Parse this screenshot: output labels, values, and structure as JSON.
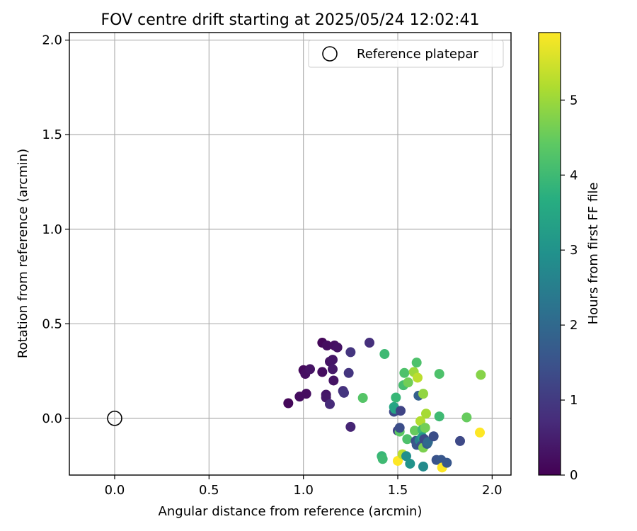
{
  "chart_data": {
    "type": "scatter",
    "title": "FOV centre drift starting at 2025/05/24 12:02:41",
    "xlabel": "Angular distance from reference (arcmin)",
    "ylabel": "Rotation from reference (arcmin)",
    "xlim": [
      -0.24,
      2.1
    ],
    "ylim": [
      -0.3,
      2.04
    ],
    "xticks": [
      0.0,
      0.5,
      1.0,
      1.5,
      2.0
    ],
    "yticks": [
      0.0,
      0.5,
      1.0,
      1.5,
      2.0
    ],
    "xtick_labels": [
      "0.0",
      "0.5",
      "1.0",
      "1.5",
      "2.0"
    ],
    "ytick_labels": [
      "0.0",
      "0.5",
      "1.0",
      "1.5",
      "2.0"
    ],
    "grid": true,
    "legend_placement": "top-right",
    "reference": {
      "name": "Reference platepar",
      "x": 0.0,
      "y": 0.0
    },
    "colorbar": {
      "label": "Hours from first FF file",
      "colormap": "viridis",
      "range": [
        0,
        5.9
      ],
      "ticks": [
        0,
        1,
        2,
        3,
        4,
        5
      ],
      "tick_labels": [
        "0",
        "1",
        "2",
        "3",
        "4",
        "5"
      ]
    },
    "series": [
      {
        "points": [
          {
            "x": 0.92,
            "y": 0.08,
            "c": 0.1
          },
          {
            "x": 0.98,
            "y": 0.115,
            "c": 0.2
          },
          {
            "x": 1.0,
            "y": 0.255,
            "c": 0.15
          },
          {
            "x": 1.01,
            "y": 0.235,
            "c": 0.25
          },
          {
            "x": 1.015,
            "y": 0.13,
            "c": 0.2
          },
          {
            "x": 1.035,
            "y": 0.26,
            "c": 0.3
          },
          {
            "x": 1.1,
            "y": 0.4,
            "c": 0.1
          },
          {
            "x": 1.1,
            "y": 0.245,
            "c": 0.2
          },
          {
            "x": 1.12,
            "y": 0.125,
            "c": 0.35
          },
          {
            "x": 1.12,
            "y": 0.11,
            "c": 0.4
          },
          {
            "x": 1.125,
            "y": 0.385,
            "c": 0.2
          },
          {
            "x": 1.14,
            "y": 0.3,
            "c": 0.3
          },
          {
            "x": 1.155,
            "y": 0.31,
            "c": 0.35
          },
          {
            "x": 1.155,
            "y": 0.26,
            "c": 0.4
          },
          {
            "x": 1.16,
            "y": 0.2,
            "c": 0.3
          },
          {
            "x": 1.165,
            "y": 0.385,
            "c": 0.25
          },
          {
            "x": 1.18,
            "y": 0.375,
            "c": 0.3
          },
          {
            "x": 1.14,
            "y": 0.075,
            "c": 0.7
          },
          {
            "x": 1.21,
            "y": 0.145,
            "c": 0.8
          },
          {
            "x": 1.215,
            "y": 0.135,
            "c": 0.9
          },
          {
            "x": 1.24,
            "y": 0.24,
            "c": 0.9
          },
          {
            "x": 1.25,
            "y": 0.35,
            "c": 0.9
          },
          {
            "x": 1.25,
            "y": -0.045,
            "c": 0.6
          },
          {
            "x": 1.35,
            "y": 0.4,
            "c": 0.8
          },
          {
            "x": 1.315,
            "y": 0.108,
            "c": 4.3
          },
          {
            "x": 1.415,
            "y": -0.2,
            "c": 3.9
          },
          {
            "x": 1.42,
            "y": -0.215,
            "c": 4.0
          },
          {
            "x": 1.43,
            "y": 0.34,
            "c": 4.0
          },
          {
            "x": 1.48,
            "y": 0.035,
            "c": 1.3
          },
          {
            "x": 1.48,
            "y": 0.06,
            "c": 3.5
          },
          {
            "x": 1.485,
            "y": 0.05,
            "c": 3.4
          },
          {
            "x": 1.49,
            "y": 0.11,
            "c": 3.9
          },
          {
            "x": 1.5,
            "y": -0.065,
            "c": 1.2
          },
          {
            "x": 1.51,
            "y": -0.07,
            "c": 4.4
          },
          {
            "x": 1.51,
            "y": -0.05,
            "c": 1.4
          },
          {
            "x": 1.515,
            "y": 0.04,
            "c": 1.2
          },
          {
            "x": 1.5,
            "y": -0.225,
            "c": 5.9
          },
          {
            "x": 1.525,
            "y": -0.19,
            "c": 5.3
          },
          {
            "x": 1.53,
            "y": 0.175,
            "c": 4.1
          },
          {
            "x": 1.535,
            "y": 0.24,
            "c": 4.2
          },
          {
            "x": 1.545,
            "y": -0.2,
            "c": 2.9
          },
          {
            "x": 1.55,
            "y": -0.11,
            "c": 4.2
          },
          {
            "x": 1.555,
            "y": 0.19,
            "c": 4.6
          },
          {
            "x": 1.565,
            "y": -0.24,
            "c": 3.0
          },
          {
            "x": 1.585,
            "y": 0.245,
            "c": 5.0
          },
          {
            "x": 1.59,
            "y": -0.065,
            "c": 4.5
          },
          {
            "x": 1.595,
            "y": -0.12,
            "c": 1.4
          },
          {
            "x": 1.6,
            "y": -0.14,
            "c": 1.6
          },
          {
            "x": 1.6,
            "y": 0.295,
            "c": 4.2
          },
          {
            "x": 1.605,
            "y": 0.215,
            "c": 5.3
          },
          {
            "x": 1.61,
            "y": 0.12,
            "c": 1.8
          },
          {
            "x": 1.615,
            "y": -0.115,
            "c": 2.6
          },
          {
            "x": 1.62,
            "y": -0.015,
            "c": 5.2
          },
          {
            "x": 1.625,
            "y": -0.145,
            "c": 1.5
          },
          {
            "x": 1.63,
            "y": -0.06,
            "c": 4.0
          },
          {
            "x": 1.63,
            "y": -0.1,
            "c": 3.2
          },
          {
            "x": 1.635,
            "y": 0.13,
            "c": 4.9
          },
          {
            "x": 1.635,
            "y": -0.155,
            "c": 4.7
          },
          {
            "x": 1.635,
            "y": -0.255,
            "c": 2.8
          },
          {
            "x": 1.64,
            "y": -0.11,
            "c": 1.3
          },
          {
            "x": 1.645,
            "y": -0.05,
            "c": 4.6
          },
          {
            "x": 1.65,
            "y": 0.025,
            "c": 5.1
          },
          {
            "x": 1.655,
            "y": -0.135,
            "c": 1.7
          },
          {
            "x": 1.66,
            "y": -0.125,
            "c": 2.0
          },
          {
            "x": 1.69,
            "y": -0.095,
            "c": 1.4
          },
          {
            "x": 1.705,
            "y": -0.22,
            "c": 1.5
          },
          {
            "x": 1.72,
            "y": 0.235,
            "c": 4.2
          },
          {
            "x": 1.72,
            "y": 0.01,
            "c": 4.0
          },
          {
            "x": 1.73,
            "y": -0.22,
            "c": 1.6
          },
          {
            "x": 1.735,
            "y": -0.26,
            "c": 5.9
          },
          {
            "x": 1.76,
            "y": -0.235,
            "c": 1.6
          },
          {
            "x": 1.83,
            "y": -0.12,
            "c": 1.3
          },
          {
            "x": 1.865,
            "y": 0.005,
            "c": 4.5
          },
          {
            "x": 1.935,
            "y": -0.075,
            "c": 5.9
          },
          {
            "x": 1.94,
            "y": 0.23,
            "c": 4.8
          }
        ]
      }
    ]
  }
}
